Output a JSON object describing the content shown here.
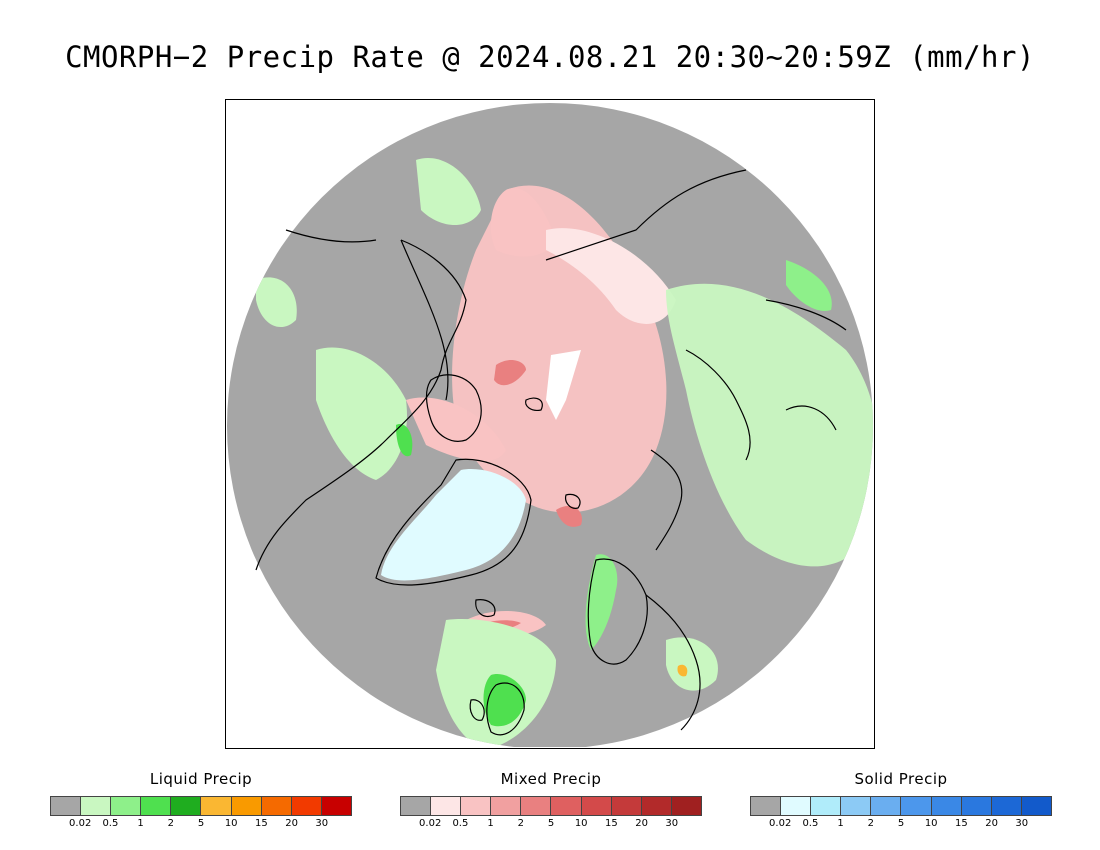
{
  "title": "CMORPH−2 Precip Rate @ 2024.08.21 20:30~20:59Z (mm/hr)",
  "map": {
    "background_color": "#a6a6a6",
    "coastline_color": "#000000"
  },
  "legends": [
    {
      "title": "Liquid Precip",
      "colors": [
        "#a6a6a6",
        "#c9f7c1",
        "#8ef08a",
        "#4fe04f",
        "#1fad1f",
        "#fab732",
        "#f99a00",
        "#f56a00",
        "#f23a00",
        "#c80000"
      ],
      "ticks": [
        "0.02",
        "0.5",
        "1",
        "2",
        "5",
        "10",
        "15",
        "20",
        "30"
      ]
    },
    {
      "title": "Mixed Precip",
      "colors": [
        "#a6a6a6",
        "#fde6e6",
        "#f9c3c3",
        "#f1a0a0",
        "#e98080",
        "#df6060",
        "#d34a4a",
        "#c43a3a",
        "#b22a2a",
        "#a02020"
      ],
      "ticks": [
        "0.02",
        "0.5",
        "1",
        "2",
        "5",
        "10",
        "15",
        "20",
        "30"
      ]
    },
    {
      "title": "Solid Precip",
      "colors": [
        "#a6a6a6",
        "#e0fbff",
        "#b0ecfa",
        "#8ccaf5",
        "#6aaef0",
        "#4c97ec",
        "#3a88e6",
        "#2a78df",
        "#1c68d6",
        "#125acb"
      ],
      "ticks": [
        "0.02",
        "0.5",
        "1",
        "2",
        "5",
        "10",
        "15",
        "20",
        "30"
      ]
    }
  ]
}
